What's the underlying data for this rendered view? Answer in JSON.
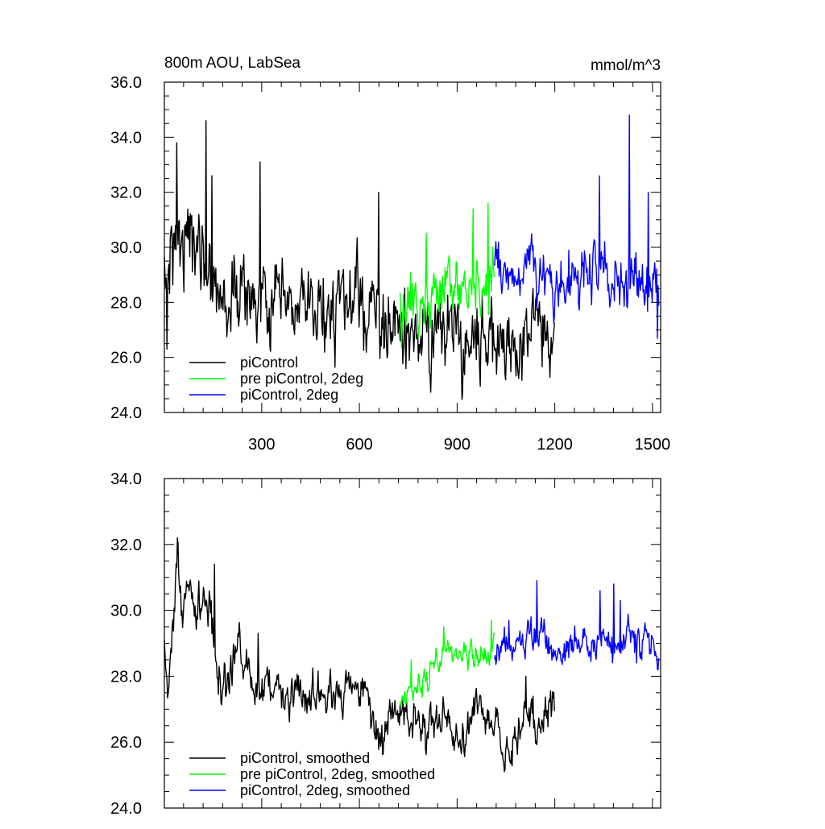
{
  "chart_data": [
    {
      "type": "line",
      "title": "800m AOU, LabSea",
      "units": "mmol/m^3",
      "xlim": [
        1,
        1525
      ],
      "ylim": [
        24.0,
        36.0
      ],
      "x_ticks": [
        300,
        600,
        900,
        1200,
        1500
      ],
      "x_tick_labels": [
        "300",
        "600",
        "900",
        "1200",
        "1500"
      ],
      "y_ticks": [
        24.0,
        26.0,
        28.0,
        30.0,
        32.0,
        34.0,
        36.0
      ],
      "y_tick_labels": [
        "24.0",
        "26.0",
        "28.0",
        "30.0",
        "32.0",
        "34.0",
        "36.0"
      ],
      "grid": false,
      "legend_position": "bottom-left",
      "series": [
        {
          "name": "piControl",
          "color": "#000000",
          "x_start": 1,
          "x_end": 1200,
          "anchors": [
            [
              1,
              28.6
            ],
            [
              25,
              30.2
            ],
            [
              45,
              30.6
            ],
            [
              75,
              30.3
            ],
            [
              110,
              30.0
            ],
            [
              140,
              29.2
            ],
            [
              160,
              28.6
            ],
            [
              190,
              27.9
            ],
            [
              230,
              28.4
            ],
            [
              270,
              28.2
            ],
            [
              300,
              27.8
            ],
            [
              330,
              27.9
            ],
            [
              360,
              27.8
            ],
            [
              420,
              27.7
            ],
            [
              470,
              27.6
            ],
            [
              520,
              27.8
            ],
            [
              560,
              27.9
            ],
            [
              600,
              28.0
            ],
            [
              620,
              27.8
            ],
            [
              650,
              27.4
            ],
            [
              700,
              27.0
            ],
            [
              740,
              26.9
            ],
            [
              780,
              26.6
            ],
            [
              820,
              26.8
            ],
            [
              860,
              27.1
            ],
            [
              890,
              26.8
            ],
            [
              920,
              26.4
            ],
            [
              950,
              26.9
            ],
            [
              980,
              26.9
            ],
            [
              1010,
              26.8
            ],
            [
              1040,
              26.4
            ],
            [
              1080,
              26.3
            ],
            [
              1110,
              26.8
            ],
            [
              1150,
              27.2
            ],
            [
              1180,
              27.3
            ],
            [
              1200,
              27.1
            ]
          ],
          "noise_sd": 1.0,
          "spikes": [
            [
              40,
              33.8
            ],
            [
              130,
              34.6
            ],
            [
              148,
              32.6
            ],
            [
              295,
              33.1
            ],
            [
              660,
              32.0
            ],
            [
              10,
              26.3
            ]
          ]
        },
        {
          "name": "pre piControl, 2deg",
          "color": "#00ff00",
          "x_start": 725,
          "x_end": 1015,
          "anchors": [
            [
              725,
              27.3
            ],
            [
              760,
              27.8
            ],
            [
              800,
              28.0
            ],
            [
              840,
              28.4
            ],
            [
              880,
              28.7
            ],
            [
              920,
              28.7
            ],
            [
              960,
              28.6
            ],
            [
              1000,
              28.7
            ],
            [
              1015,
              29.3
            ]
          ],
          "noise_sd": 0.75,
          "spikes": [
            [
              805,
              30.5
            ],
            [
              950,
              31.4
            ],
            [
              996,
              31.6
            ]
          ]
        },
        {
          "name": "piControl, 2deg",
          "color": "#0000ff",
          "x_start": 1015,
          "x_end": 1520,
          "anchors": [
            [
              1015,
              28.9
            ],
            [
              1060,
              29.0
            ],
            [
              1100,
              29.1
            ],
            [
              1150,
              29.2
            ],
            [
              1200,
              28.8
            ],
            [
              1250,
              28.9
            ],
            [
              1300,
              29.0
            ],
            [
              1340,
              29.2
            ],
            [
              1380,
              29.0
            ],
            [
              1420,
              28.8
            ],
            [
              1460,
              28.9
            ],
            [
              1500,
              28.5
            ],
            [
              1520,
              28.4
            ]
          ],
          "noise_sd": 0.75,
          "spikes": [
            [
              1430,
              34.8
            ],
            [
              1337,
              32.6
            ],
            [
              1488,
              32.0
            ],
            [
              1515,
              26.7
            ]
          ]
        }
      ]
    },
    {
      "type": "line",
      "title": "",
      "units": "",
      "xlim": [
        1,
        1525
      ],
      "ylim": [
        24.0,
        34.0
      ],
      "x_ticks": [
        300,
        600,
        900,
        1200,
        1500
      ],
      "x_tick_labels": [],
      "y_ticks": [
        24.0,
        26.0,
        28.0,
        30.0,
        32.0,
        34.0
      ],
      "y_tick_labels": [
        "24.0",
        "26.0",
        "28.0",
        "30.0",
        "32.0",
        "34.0"
      ],
      "grid": false,
      "legend_position": "bottom-left",
      "series": [
        {
          "name": "piControl, smoothed",
          "color": "#000000",
          "x_start": 1,
          "x_end": 1200,
          "anchors": [
            [
              1,
              29.2
            ],
            [
              10,
              27.3
            ],
            [
              25,
              29.0
            ],
            [
              40,
              32.0
            ],
            [
              55,
              29.6
            ],
            [
              70,
              30.8
            ],
            [
              95,
              30.2
            ],
            [
              120,
              30.3
            ],
            [
              140,
              30.0
            ],
            [
              160,
              28.5
            ],
            [
              180,
              27.6
            ],
            [
              200,
              28.0
            ],
            [
              230,
              28.8
            ],
            [
              260,
              28.2
            ],
            [
              290,
              27.5
            ],
            [
              320,
              27.6
            ],
            [
              350,
              27.9
            ],
            [
              380,
              27.4
            ],
            [
              410,
              27.6
            ],
            [
              440,
              27.4
            ],
            [
              460,
              27.8
            ],
            [
              490,
              27.2
            ],
            [
              520,
              27.5
            ],
            [
              550,
              27.5
            ],
            [
              580,
              27.9
            ],
            [
              610,
              27.7
            ],
            [
              630,
              27.4
            ],
            [
              650,
              26.2
            ],
            [
              670,
              26.3
            ],
            [
              700,
              26.6
            ],
            [
              730,
              26.8
            ],
            [
              750,
              26.7
            ],
            [
              780,
              26.4
            ],
            [
              800,
              26.3
            ],
            [
              830,
              26.6
            ],
            [
              860,
              26.9
            ],
            [
              880,
              26.5
            ],
            [
              900,
              25.9
            ],
            [
              920,
              25.9
            ],
            [
              940,
              26.6
            ],
            [
              960,
              27.1
            ],
            [
              980,
              26.8
            ],
            [
              1000,
              26.6
            ],
            [
              1020,
              26.5
            ],
            [
              1040,
              26.0
            ],
            [
              1070,
              25.6
            ],
            [
              1090,
              26.3
            ],
            [
              1110,
              27.2
            ],
            [
              1130,
              26.6
            ],
            [
              1150,
              26.2
            ],
            [
              1170,
              26.8
            ],
            [
              1200,
              27.0
            ]
          ],
          "noise_sd": 0.45,
          "spikes": [
            [
              42,
              32.2
            ],
            [
              155,
              31.4
            ],
            [
              290,
              29.3
            ],
            [
              1112,
              28.0
            ]
          ]
        },
        {
          "name": "pre piControl, 2deg, smoothed",
          "color": "#00ff00",
          "x_start": 725,
          "x_end": 1015,
          "anchors": [
            [
              725,
              27.2
            ],
            [
              750,
              27.4
            ],
            [
              770,
              27.6
            ],
            [
              790,
              27.5
            ],
            [
              810,
              28.0
            ],
            [
              830,
              28.6
            ],
            [
              860,
              28.8
            ],
            [
              880,
              28.6
            ],
            [
              900,
              28.5
            ],
            [
              920,
              28.8
            ],
            [
              940,
              28.6
            ],
            [
              960,
              28.4
            ],
            [
              985,
              28.6
            ],
            [
              1000,
              28.8
            ],
            [
              1015,
              29.0
            ]
          ],
          "noise_sd": 0.32,
          "spikes": [
            [
              760,
              28.5
            ],
            [
              860,
              29.5
            ],
            [
              1005,
              29.7
            ]
          ]
        },
        {
          "name": "piControl, 2deg, smoothed",
          "color": "#0000ff",
          "x_start": 1015,
          "x_end": 1520,
          "anchors": [
            [
              1015,
              28.4
            ],
            [
              1040,
              29.1
            ],
            [
              1070,
              29.1
            ],
            [
              1100,
              29.0
            ],
            [
              1130,
              29.3
            ],
            [
              1160,
              29.2
            ],
            [
              1190,
              28.8
            ],
            [
              1220,
              28.7
            ],
            [
              1250,
              28.9
            ],
            [
              1280,
              29.3
            ],
            [
              1300,
              28.8
            ],
            [
              1320,
              28.6
            ],
            [
              1340,
              29.3
            ],
            [
              1360,
              29.5
            ],
            [
              1380,
              28.6
            ],
            [
              1400,
              28.9
            ],
            [
              1430,
              29.4
            ],
            [
              1450,
              28.8
            ],
            [
              1480,
              29.1
            ],
            [
              1500,
              28.7
            ],
            [
              1520,
              28.4
            ]
          ],
          "noise_sd": 0.35,
          "spikes": [
            [
              1145,
              30.9
            ],
            [
              1340,
              30.6
            ],
            [
              1381,
              30.8
            ],
            [
              1402,
              30.3
            ],
            [
              1060,
              29.7
            ]
          ]
        }
      ]
    }
  ]
}
